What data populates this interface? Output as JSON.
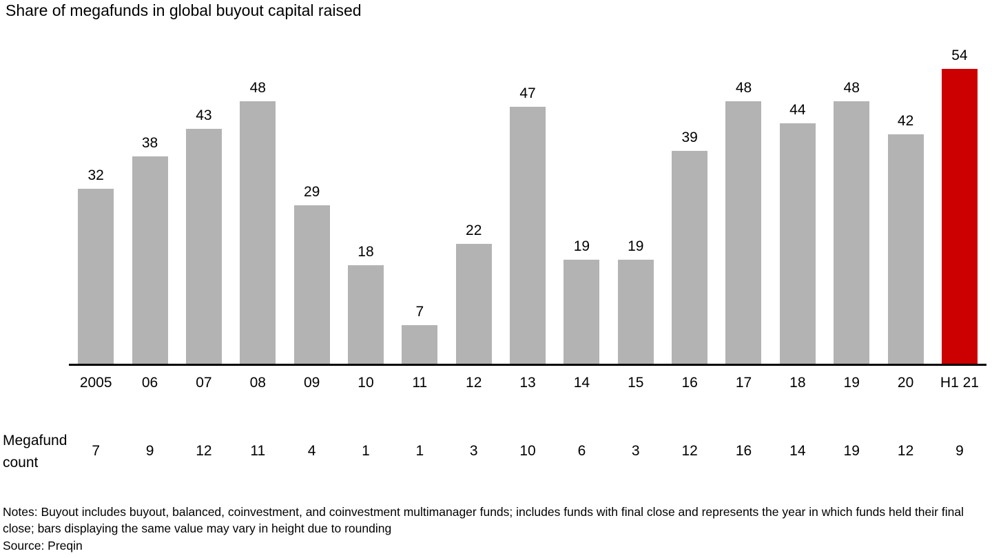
{
  "title": "Share of megafunds in global buyout capital raised",
  "chart_data": {
    "type": "bar",
    "title": "Share of megafunds in global buyout capital raised",
    "categories": [
      "2005",
      "06",
      "07",
      "08",
      "09",
      "10",
      "11",
      "12",
      "13",
      "14",
      "15",
      "16",
      "17",
      "18",
      "19",
      "20",
      "H1 21"
    ],
    "values": [
      32,
      38,
      43,
      48,
      29,
      18,
      7,
      22,
      47,
      19,
      19,
      39,
      48,
      44,
      48,
      42,
      54
    ],
    "megafund_counts": [
      7,
      9,
      12,
      11,
      4,
      1,
      1,
      3,
      10,
      6,
      3,
      12,
      16,
      14,
      19,
      12,
      9
    ],
    "highlight_index": 16,
    "bar_color": "#b3b3b3",
    "highlight_color": "#cc0000",
    "xlabel": "",
    "ylabel": "",
    "ylim": [
      0,
      56
    ],
    "grid": false,
    "legend": "none",
    "data_labels": true
  },
  "megafund_count_label": {
    "line1": "Megafund",
    "line2": "count"
  },
  "notes": "Notes: Buyout includes buyout, balanced, coinvestment, and coinvestment multimanager funds; includes funds with final close and represents the year in which funds held their final close; bars displaying the same value may vary in height due to rounding",
  "source": "Source: Preqin"
}
